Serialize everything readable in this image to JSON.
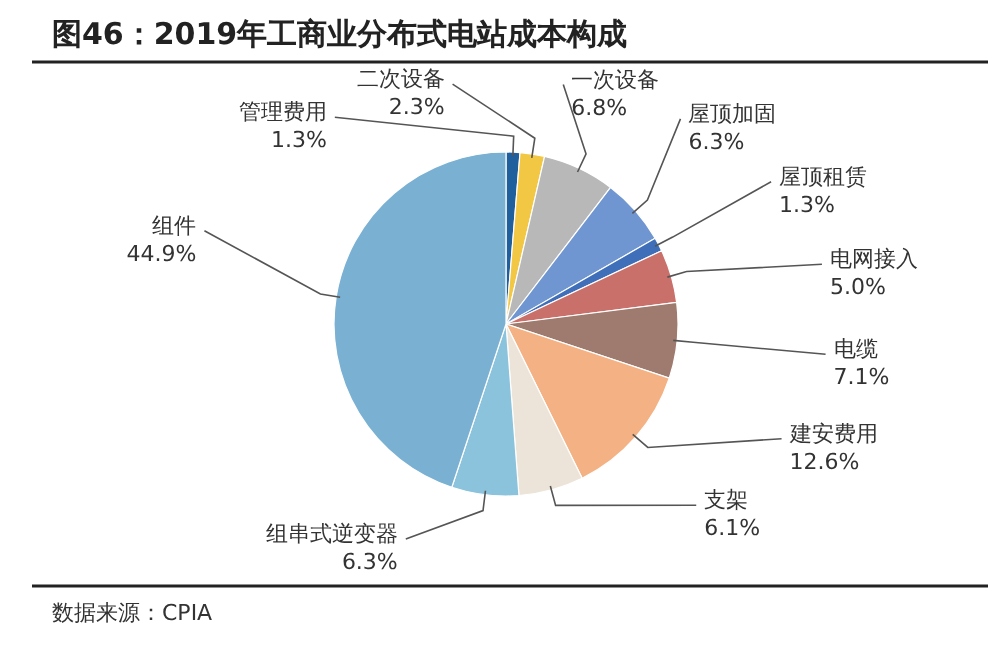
{
  "chart_data": {
    "type": "pie",
    "title": "图46：2019年工商业分布式电站成本构成",
    "categories": [
      "管理费用",
      "二次设备",
      "一次设备",
      "屋顶加固",
      "屋顶租赁",
      "电网接入",
      "电缆",
      "建安费用",
      "支架",
      "组串式逆变器",
      "组件"
    ],
    "values": [
      1.3,
      2.3,
      6.8,
      6.3,
      1.3,
      5.0,
      7.1,
      12.6,
      6.1,
      6.3,
      44.9
    ],
    "colors": [
      "#1f5f9e",
      "#f2c744",
      "#b8b8b8",
      "#6f96d0",
      "#3f6fb8",
      "#c9706a",
      "#9e7b6e",
      "#f4b183",
      "#ece4d8",
      "#8cc3dc",
      "#7ab0d2"
    ],
    "value_labels": [
      "1.3%",
      "2.3%",
      "6.8%",
      "6.3%",
      "1.3%",
      "5.0%",
      "7.1%",
      "12.6%",
      "6.1%",
      "6.3%",
      "44.9%"
    ],
    "annotations": [
      "数据来源：CPIA"
    ]
  }
}
